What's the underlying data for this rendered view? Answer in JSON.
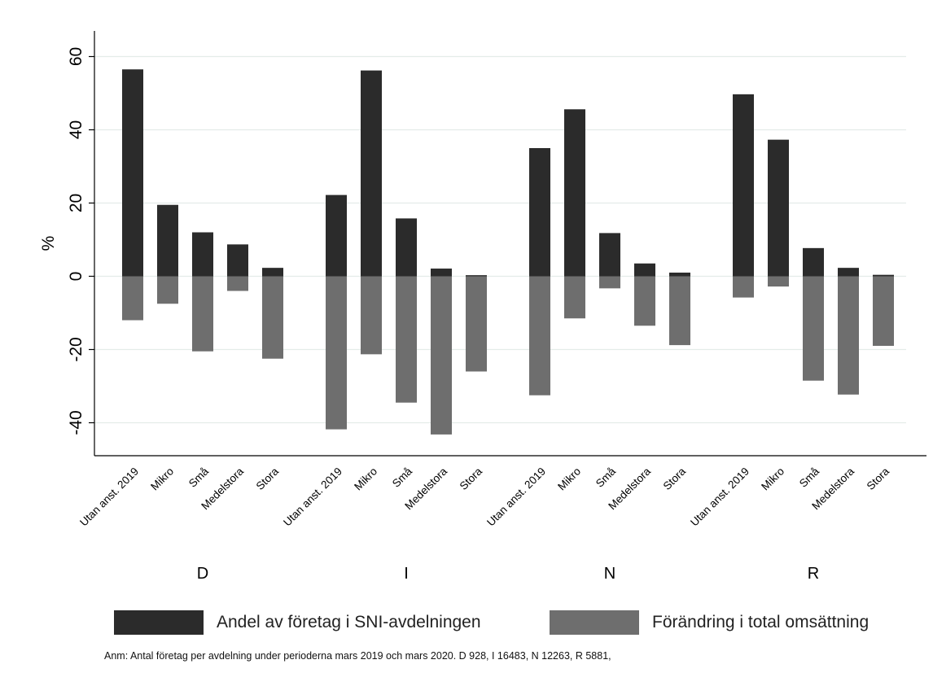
{
  "chart_data": {
    "type": "bar",
    "ylabel": "%",
    "ylim": [
      -49,
      67
    ],
    "yticks": [
      -40,
      -20,
      0,
      20,
      40,
      60
    ],
    "ytick_labels": [
      "-40",
      "-20",
      "0",
      "20",
      "40",
      "60"
    ],
    "grid": true,
    "legend_position": "bottom",
    "groups": [
      "D",
      "I",
      "N",
      "R"
    ],
    "categories": [
      "Utan anst. 2019",
      "Mikro",
      "Små",
      "Medelstora",
      "Stora"
    ],
    "series": [
      {
        "name": "Andel av företag i SNI-avdelningen",
        "color": "#2b2b2b",
        "values": [
          [
            56.5,
            19.5,
            12.0,
            8.7,
            2.3
          ],
          [
            22.2,
            56.2,
            15.8,
            2.1,
            0.3
          ],
          [
            35.0,
            45.6,
            11.8,
            3.5,
            1.0
          ],
          [
            49.7,
            37.3,
            7.7,
            2.3,
            0.4
          ]
        ]
      },
      {
        "name": "Förändring i total omsättning",
        "color": "#6e6e6e",
        "values": [
          [
            -12.0,
            -7.5,
            -20.5,
            -4.0,
            -22.5
          ],
          [
            -41.8,
            -21.3,
            -34.5,
            -43.2,
            -26.0
          ],
          [
            -32.5,
            -11.5,
            -3.3,
            -13.5,
            -18.8
          ],
          [
            -5.8,
            -2.8,
            -28.5,
            -32.3,
            -19.0
          ]
        ]
      }
    ],
    "note": "Anm: Antal företag per avdelning under perioderna mars 2019 och mars 2020. D 928, I 16483, N 12263, R 5881,"
  }
}
